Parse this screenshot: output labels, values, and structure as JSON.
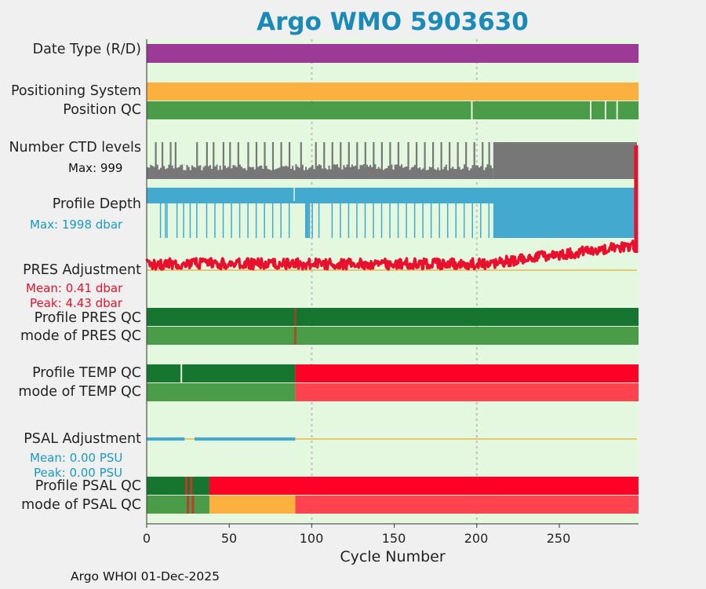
{
  "chart_data": {
    "type": "status-timeline",
    "title": "Argo WMO 5903630",
    "xlabel": "Cycle Number",
    "xlim": [
      0,
      298
    ],
    "xticks": [
      "0",
      "50",
      "100",
      "150",
      "200",
      "250"
    ],
    "xtick_values": [
      0,
      50,
      100,
      150,
      200,
      250
    ],
    "grid_x": [
      100,
      200
    ],
    "footer": "Argo WHOI 01-Dec-2025",
    "panels": {
      "date_type": {
        "label": "Date Type (R/D)",
        "color": "#9b3a97"
      },
      "positioning_system": {
        "label": "Positioning System",
        "color": "#fbb040"
      },
      "position_qc": {
        "label": "Position QC",
        "color": "#4a9c48",
        "gap_cycles": [
          197,
          269,
          278,
          285
        ]
      },
      "ctd_levels": {
        "label": "Number CTD levels",
        "max_label": "Max: 999",
        "color": "#777777"
      },
      "profile_depth": {
        "label": "Profile Depth",
        "max_label": "Max: 1998 dbar",
        "color": "#44a9cf"
      },
      "pres_adjustment": {
        "label": "PRES Adjustment",
        "mean_label": "Mean: 0.41 dbar",
        "peak_label": "Peak: 4.43 dbar",
        "color": "#e8102d",
        "zero_line_color": "#e6b84a"
      },
      "profile_pres_qc": {
        "label": "Profile PRES QC",
        "color": "#16762f",
        "marks": [
          90
        ]
      },
      "mode_pres_qc": {
        "label": "mode of PRES QC",
        "color": "#4a9c48",
        "marks": [
          90
        ]
      },
      "profile_temp_qc": {
        "label": "Profile TEMP QC",
        "segments": [
          {
            "from": 0,
            "to": 90,
            "color": "#16762f"
          },
          {
            "from": 90,
            "to": 298,
            "color": "#ff0026"
          }
        ],
        "gap_cycles": [
          21
        ]
      },
      "mode_temp_qc": {
        "label": "mode of TEMP QC",
        "segments": [
          {
            "from": 0,
            "to": 90,
            "color": "#4a9c48"
          },
          {
            "from": 90,
            "to": 298,
            "color": "#ff4450"
          }
        ]
      },
      "psal_adjustment": {
        "label": "PSAL Adjustment",
        "mean_label": "Mean: 0.00 PSU",
        "peak_label": "Peak: 0.00 PSU",
        "color": "#44a9cf",
        "segments": [
          {
            "from": 0,
            "to": 23
          },
          {
            "from": 29,
            "to": 90
          }
        ]
      },
      "profile_psal_qc": {
        "label": "Profile PSAL QC",
        "segments": [
          {
            "from": 0,
            "to": 38,
            "color": "#16762f"
          },
          {
            "from": 38,
            "to": 298,
            "color": "#ff0026"
          }
        ],
        "marks": [
          24,
          27
        ]
      },
      "mode_psal_qc": {
        "label": "mode of PSAL QC",
        "segments": [
          {
            "from": 0,
            "to": 38,
            "color": "#4a9c48"
          },
          {
            "from": 38,
            "to": 90,
            "color": "#fbb040"
          },
          {
            "from": 90,
            "to": 298,
            "color": "#ff4450"
          }
        ],
        "marks": [
          25,
          28
        ]
      }
    }
  }
}
